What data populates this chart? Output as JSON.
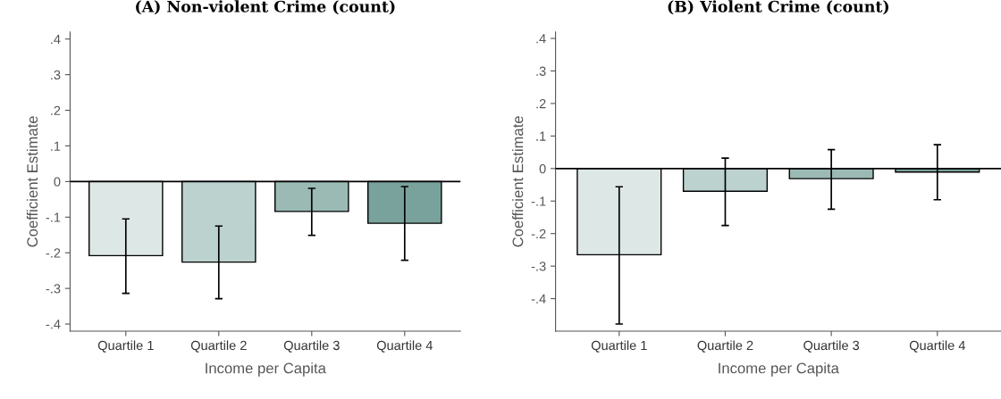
{
  "chart_data": [
    {
      "type": "bar",
      "title": "(A) Non-violent Crime (count)",
      "xlabel": "Income per Capita",
      "ylabel": "Coefficient Estimate",
      "categories": [
        "Quartile 1",
        "Quartile 2",
        "Quartile 3",
        "Quartile 4"
      ],
      "values": [
        -0.208,
        -0.226,
        -0.084,
        -0.117
      ],
      "errors": [
        [
          -0.314,
          -0.105
        ],
        [
          -0.329,
          -0.125
        ],
        [
          -0.151,
          -0.019
        ],
        [
          -0.221,
          -0.014
        ]
      ],
      "colors": [
        "#dde7e5",
        "#bcd2cf",
        "#9bbab4",
        "#7aa29c"
      ],
      "ylim": [
        -0.42,
        0.42
      ],
      "yticks": [
        {
          "value": -0.4,
          "label": "-.4"
        },
        {
          "value": -0.3,
          "label": "-.3"
        },
        {
          "value": -0.2,
          "label": "-.2"
        },
        {
          "value": -0.1,
          "label": "-.1"
        },
        0,
        {
          "value": 0.1,
          "label": ".1"
        },
        {
          "value": 0.2,
          "label": ".2"
        },
        {
          "value": 0.3,
          "label": ".3"
        },
        {
          "value": 0.4,
          "label": ".4"
        }
      ],
      "ref_lines": [
        {
          "axis": "y",
          "value": 0,
          "color": "#000000"
        }
      ],
      "grid": false
    },
    {
      "type": "bar",
      "title": "(B) Violent Crime (count)",
      "xlabel": "Income per Capita",
      "ylabel": "Coefficient Estimate",
      "categories": [
        "Quartile 1",
        "Quartile 2",
        "Quartile 3",
        "Quartile 4"
      ],
      "values": [
        -0.265,
        -0.07,
        -0.031,
        -0.011
      ],
      "errors": [
        [
          -0.478,
          -0.056
        ],
        [
          -0.175,
          0.032
        ],
        [
          -0.125,
          0.058
        ],
        [
          -0.096,
          0.073
        ]
      ],
      "colors": [
        "#dde7e5",
        "#bcd2cf",
        "#9bbab4",
        "#7aa29c"
      ],
      "ylim": [
        -0.5,
        0.42
      ],
      "yticks": [
        {
          "value": -0.4,
          "label": "-.4"
        },
        {
          "value": -0.3,
          "label": "-.3"
        },
        {
          "value": -0.2,
          "label": "-.2"
        },
        {
          "value": -0.1,
          "label": "-.1"
        },
        0,
        {
          "value": 0.1,
          "label": ".1"
        },
        {
          "value": 0.2,
          "label": ".2"
        },
        {
          "value": 0.3,
          "label": ".3"
        },
        {
          "value": 0.4,
          "label": ".4"
        }
      ],
      "ref_lines": [
        {
          "axis": "y",
          "value": 0,
          "color": "#000000"
        }
      ],
      "grid": false
    }
  ]
}
